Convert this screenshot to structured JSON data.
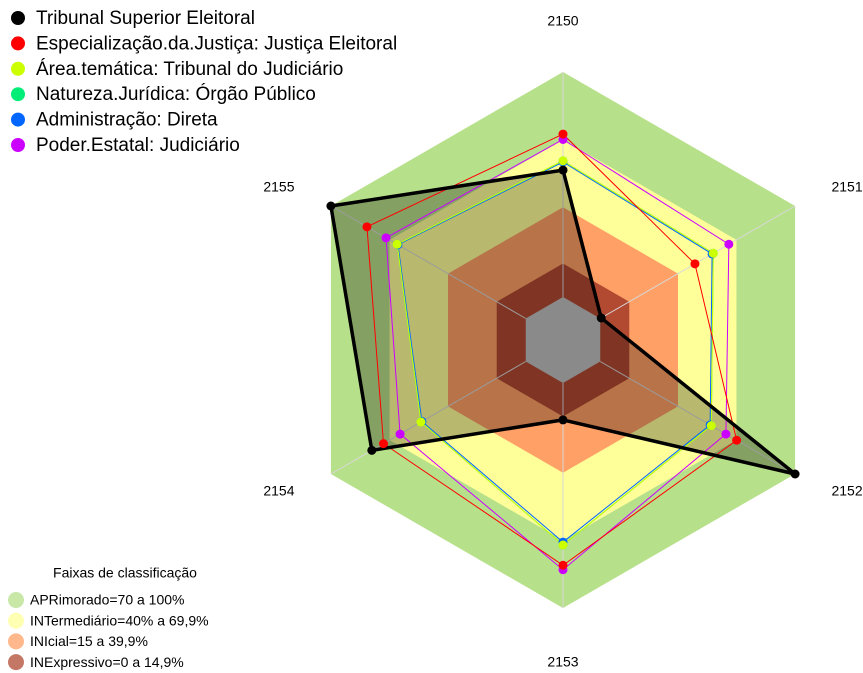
{
  "chart_data": {
    "type": "radar",
    "categories": [
      "2150",
      "2151",
      "2152",
      "2153",
      "2154",
      "2155"
    ],
    "rlim": [
      0,
      100
    ],
    "series": [
      {
        "name": "Tribunal Superior Eleitoral",
        "color": "#000000",
        "values": [
          56.4,
          0.5,
          100,
          16.4,
          79,
          100
        ]
      },
      {
        "name": "Especialização.da.Justiça: Justiça Eleitoral",
        "color": "#ff0000",
        "values": [
          72.4,
          48.6,
          70,
          81,
          73,
          81.5
        ]
      },
      {
        "name": "Área.temática: Tribunal do Judiciário",
        "color": "#ccff00",
        "values": [
          60.5,
          58,
          57,
          72,
          53.8,
          66
        ]
      },
      {
        "name": "Natureza.Jurídica: Órgão Público",
        "color": "#00ee77",
        "values": [
          60.5,
          58,
          57,
          72,
          53.8,
          66
        ]
      },
      {
        "name": "Administração: Direta",
        "color": "#0066ff",
        "values": [
          60,
          57.4,
          56.4,
          70.7,
          53.3,
          65.6
        ]
      },
      {
        "name": "Poder.Estatal: Judiciário",
        "color": "#cc00ff",
        "values": [
          70,
          66,
          64.5,
          83,
          64.5,
          71.7
        ]
      }
    ],
    "bands_title": "Faixas de classificação",
    "bands": [
      {
        "label": "APRimorado=70 a 100%",
        "from": 70,
        "to": 100,
        "color": "#b7e08a"
      },
      {
        "label": "INTermediário=40% a 69,9%",
        "from": 40,
        "to": 69.9,
        "color": "#ffff9a"
      },
      {
        "label": "INIcial=15 a 39,9%",
        "from": 15,
        "to": 39.9,
        "color": "#ffa066"
      },
      {
        "label": "INExpressivo=0 a 14,9%",
        "from": 0,
        "to": 14.9,
        "color": "#b24a32"
      }
    ]
  }
}
